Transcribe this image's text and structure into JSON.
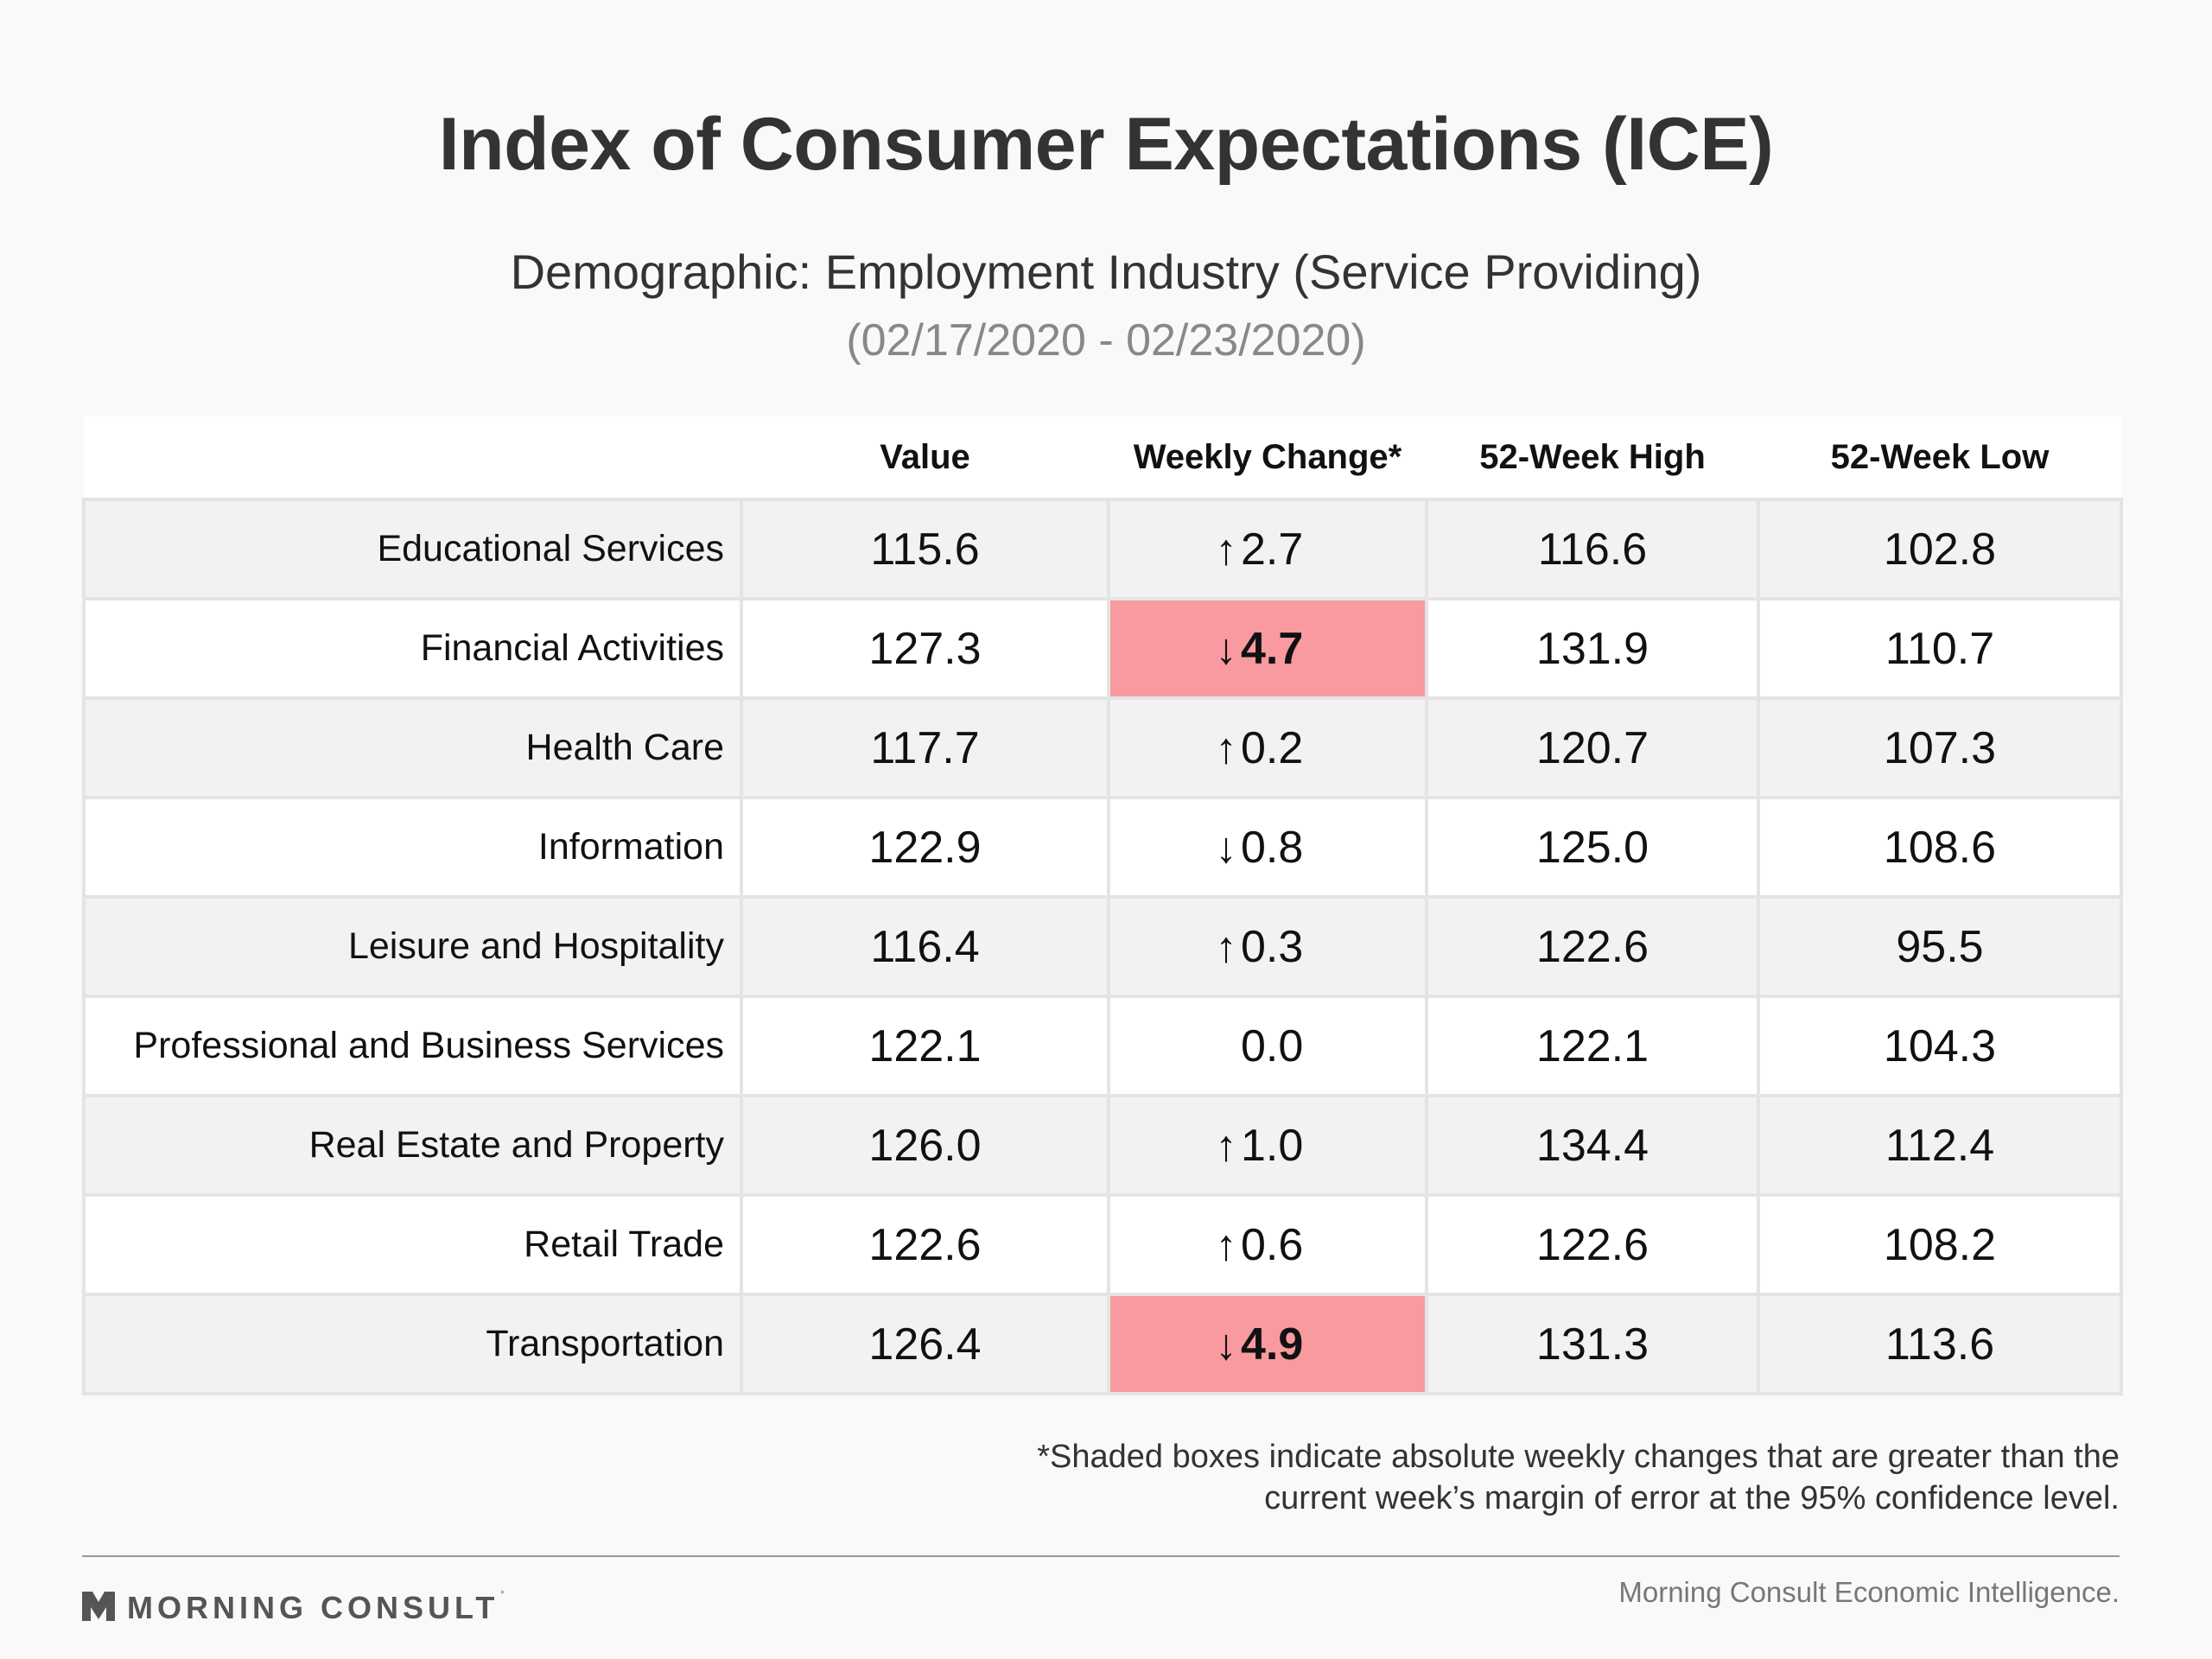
{
  "header": {
    "title": "Index of Consumer Expectations (ICE)",
    "subtitle": "Demographic: Employment Industry (Service Providing)",
    "date_range": "(02/17/2020 - 02/23/2020)"
  },
  "chart_data": {
    "type": "table",
    "columns": [
      "",
      "Value",
      "Weekly Change*",
      "52-Week High",
      "52-Week Low"
    ],
    "rows": [
      {
        "label": "Educational Services",
        "value": "115.6",
        "direction": "up",
        "change": "2.7",
        "shaded": false,
        "high": "116.6",
        "low": "102.8"
      },
      {
        "label": "Financial Activities",
        "value": "127.3",
        "direction": "down",
        "change": "4.7",
        "shaded": true,
        "high": "131.9",
        "low": "110.7"
      },
      {
        "label": "Health Care",
        "value": "117.7",
        "direction": "up",
        "change": "0.2",
        "shaded": false,
        "high": "120.7",
        "low": "107.3"
      },
      {
        "label": "Information",
        "value": "122.9",
        "direction": "down",
        "change": "0.8",
        "shaded": false,
        "high": "125.0",
        "low": "108.6"
      },
      {
        "label": "Leisure and Hospitality",
        "value": "116.4",
        "direction": "up",
        "change": "0.3",
        "shaded": false,
        "high": "122.6",
        "low": "95.5"
      },
      {
        "label": "Professional and Business Services",
        "value": "122.1",
        "direction": "none",
        "change": "0.0",
        "shaded": false,
        "high": "122.1",
        "low": "104.3"
      },
      {
        "label": "Real Estate and Property",
        "value": "126.0",
        "direction": "up",
        "change": "1.0",
        "shaded": false,
        "high": "134.4",
        "low": "112.4"
      },
      {
        "label": "Retail Trade",
        "value": "122.6",
        "direction": "up",
        "change": "0.6",
        "shaded": false,
        "high": "122.6",
        "low": "108.2"
      },
      {
        "label": "Transportation",
        "value": "126.4",
        "direction": "down",
        "change": "4.9",
        "shaded": true,
        "high": "131.3",
        "low": "113.6"
      }
    ],
    "shade_color": "#f89aa0"
  },
  "footnote": {
    "line1": "*Shaded boxes indicate absolute weekly changes that are greater than the",
    "line2": "current week’s margin of error at the 95% confidence level."
  },
  "footer": {
    "brand": "MORNING CONSULT",
    "brand_mark": "°",
    "source": "Morning Consult Economic Intelligence."
  },
  "icons": {
    "logo": "morning-consult-logo-icon",
    "up": "arrow-up-icon",
    "down": "arrow-down-icon"
  }
}
